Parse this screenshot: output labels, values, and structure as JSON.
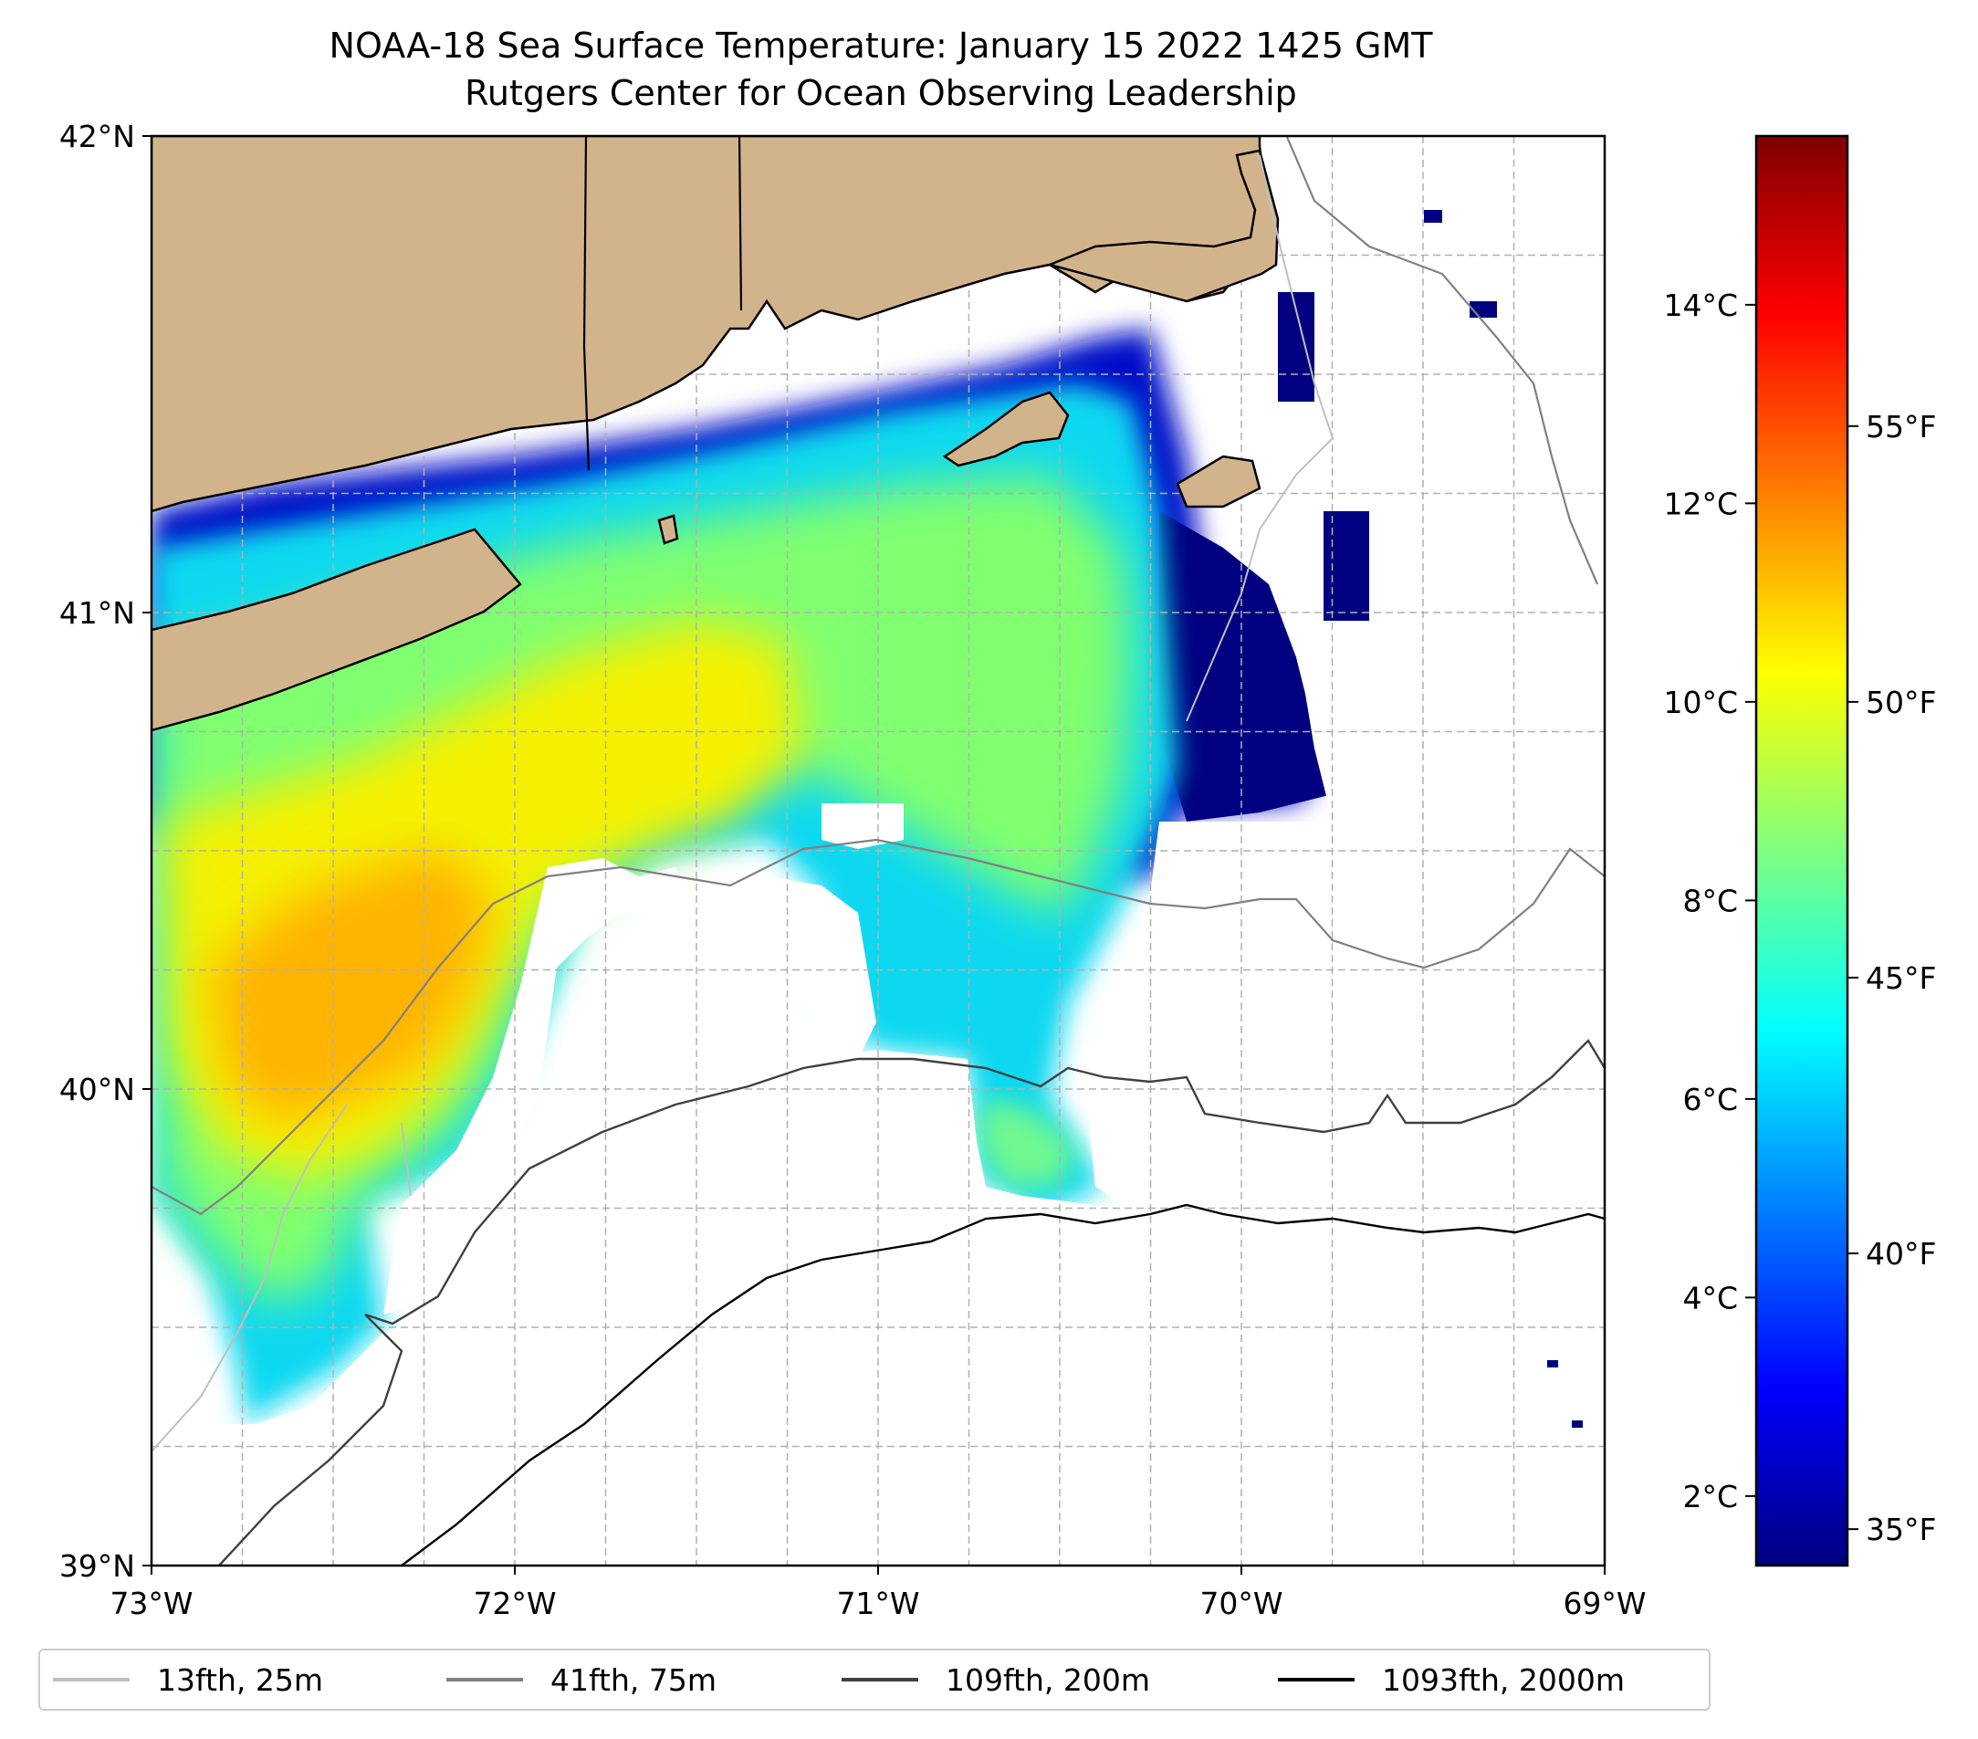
{
  "title": "NOAA-18 Sea Surface Temperature: January 15 2022 1425 GMT",
  "subtitle": "Rutgers Center for Ocean Observing Leadership",
  "colors": {
    "land": "#d2b48c",
    "coast": "#000000",
    "grid": "#b0b0b0",
    "colormap": [
      "#00007f",
      "#0000ff",
      "#007fff",
      "#00ffff",
      "#7fff7f",
      "#ffff00",
      "#ff7f00",
      "#ff0000",
      "#7f0000"
    ]
  },
  "map": {
    "lon_range": [
      -73,
      -69
    ],
    "lat_range": [
      39,
      42
    ],
    "lat_ticks": [
      "42°N",
      "41°N",
      "40°N",
      "39°N"
    ],
    "lon_ticks": [
      "73°W",
      "72°W",
      "71°W",
      "70°W",
      "69°W"
    ],
    "gridlines": true
  },
  "colorbar": {
    "celsius_range": [
      1.3,
      15.7
    ],
    "celsius_ticks": [
      "14°C",
      "12°C",
      "10°C",
      "8°C",
      "6°C",
      "4°C",
      "2°C"
    ],
    "celsius_values": [
      14,
      12,
      10,
      8,
      6,
      4,
      2
    ],
    "fahrenheit_ticks": [
      "55°F",
      "50°F",
      "45°F",
      "40°F",
      "35°F"
    ],
    "fahrenheit_values": [
      55,
      50,
      45,
      40,
      35
    ]
  },
  "legend": {
    "placement": "bottom",
    "items": [
      {
        "label": "13fth, 25m",
        "color": "#bfbfbf"
      },
      {
        "label": "41fth, 75m",
        "color": "#808080"
      },
      {
        "label": "109fth, 200m",
        "color": "#404040"
      },
      {
        "label": "1093fth, 2000m",
        "color": "#000000"
      }
    ]
  }
}
